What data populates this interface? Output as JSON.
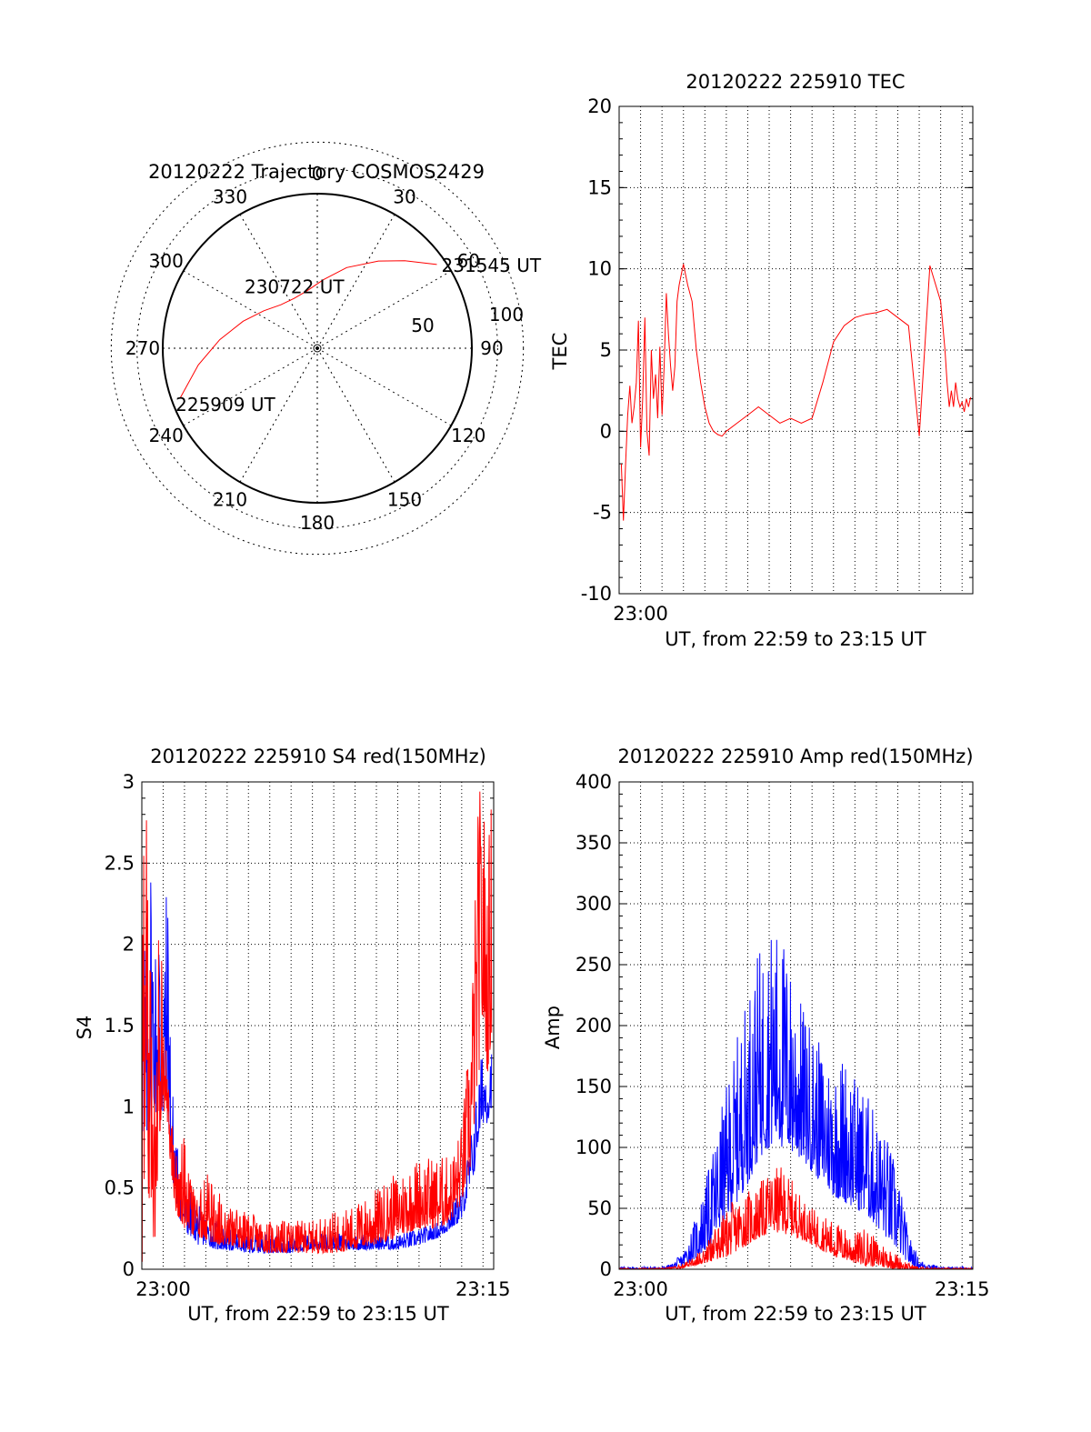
{
  "colors": {
    "red": "#ff0000",
    "blue": "#0000ff",
    "axis": "#000000"
  },
  "chart_data": [
    {
      "id": "trajectory",
      "type": "polar",
      "title": "20120222 Trajectory COSMOS2429",
      "azimuth_labels": [
        "0",
        "30",
        "60",
        "90",
        "120",
        "150",
        "180",
        "210",
        "240",
        "270",
        "300",
        "330"
      ],
      "radius_labels": [
        "50",
        "100"
      ],
      "points": [
        {
          "label": "225909 UT",
          "azimuth_deg": 250,
          "elevation_deg": 5
        },
        {
          "label": "230722 UT",
          "azimuth_deg": 330,
          "elevation_deg": 58
        },
        {
          "label": "231545 UT",
          "azimuth_deg": 55,
          "elevation_deg": 5
        }
      ],
      "series": [
        {
          "color": "red",
          "points": [
            [
              250,
              5
            ],
            [
              262,
              20
            ],
            [
              275,
              33
            ],
            [
              290,
              44
            ],
            [
              305,
              52
            ],
            [
              320,
              57
            ],
            [
              335,
              58
            ],
            [
              350,
              56
            ],
            [
              5,
              50
            ],
            [
              20,
              40
            ],
            [
              35,
              28
            ],
            [
              45,
              18
            ],
            [
              55,
              5
            ]
          ]
        }
      ]
    },
    {
      "id": "tec",
      "type": "line",
      "title": "20120222 225910 TEC",
      "xlabel": "UT, from 22:59 to 23:15 UT",
      "ylabel": "TEC",
      "xlim": [
        -1,
        15.5
      ],
      "ylim": [
        -10,
        20
      ],
      "yticks": [
        "-10",
        "-5",
        "0",
        "5",
        "10",
        "15",
        "20"
      ],
      "xticks": [
        {
          "x": 0,
          "label": "23:00"
        }
      ],
      "grid": true,
      "series": [
        {
          "color": "red",
          "x": [
            -0.9,
            -0.8,
            -0.7,
            -0.6,
            -0.5,
            -0.4,
            -0.3,
            -0.2,
            -0.1,
            0,
            0.1,
            0.2,
            0.3,
            0.4,
            0.5,
            0.6,
            0.7,
            0.8,
            0.9,
            1.0,
            1.1,
            1.2,
            1.3,
            1.4,
            1.5,
            1.6,
            1.7,
            1.8,
            2.0,
            2.2,
            2.4,
            2.6,
            2.8,
            3.0,
            3.2,
            3.4,
            3.6,
            3.8,
            4.0,
            4.5,
            5.0,
            5.5,
            6.0,
            6.5,
            7.0,
            7.5,
            8.0,
            8.5,
            9.0,
            9.5,
            10.0,
            10.5,
            11.0,
            11.5,
            12.0,
            12.5,
            13.0,
            13.5,
            14.0,
            14.2,
            14.3,
            14.4,
            14.5,
            14.6,
            14.7,
            14.8,
            14.9,
            15.0,
            15.1,
            15.2,
            15.3,
            15.4
          ],
          "y": [
            -2,
            -5.5,
            -2,
            1,
            2.8,
            0.5,
            1.5,
            3,
            6.8,
            -1,
            2,
            7,
            0,
            -1.5,
            5,
            2,
            3.5,
            0.8,
            5.2,
            1,
            4,
            8.5,
            6,
            4,
            2.5,
            4,
            8,
            9,
            10.3,
            9,
            8,
            5,
            3,
            1.5,
            0.5,
            0,
            -0.2,
            -0.3,
            0,
            0.5,
            1,
            1.5,
            1,
            0.5,
            0.8,
            0.5,
            0.8,
            3,
            5.5,
            6.5,
            7,
            7.2,
            7.3,
            7.5,
            7,
            6.5,
            -0.3,
            10.2,
            8,
            5,
            3,
            1.5,
            2.5,
            1.5,
            3,
            2,
            1.5,
            1.8,
            1.2,
            2,
            1.5,
            2.1
          ]
        }
      ]
    },
    {
      "id": "s4",
      "type": "line",
      "title": "20120222 225910 S4 red(150MHz)",
      "xlabel": "UT, from 22:59 to 23:15 UT",
      "ylabel": "S4",
      "xlim": [
        -1,
        15.5
      ],
      "ylim": [
        0,
        3
      ],
      "yticks": [
        "0",
        "0.5",
        "1",
        "1.5",
        "2",
        "2.5",
        "3"
      ],
      "xticks": [
        {
          "x": 0,
          "label": "23:00"
        },
        {
          "x": 15,
          "label": "23:15"
        }
      ],
      "grid": true,
      "envelope_note": "noisy series; values are a sampled envelope",
      "series": [
        {
          "color": "blue",
          "x": [
            -1,
            -0.8,
            -0.6,
            -0.4,
            -0.2,
            0,
            0.2,
            0.4,
            0.6,
            0.8,
            1.0,
            1.2,
            1.4,
            1.6,
            2,
            2.5,
            3,
            4,
            5,
            6,
            7,
            8,
            9,
            10,
            11,
            12,
            13,
            14,
            14.4,
            14.6,
            14.8,
            15,
            15.2,
            15.4
          ],
          "lo": [
            0.8,
            0.7,
            0.9,
            1.0,
            0.8,
            0.9,
            1.0,
            0.6,
            0.4,
            0.3,
            0.25,
            0.2,
            0.2,
            0.15,
            0.15,
            0.12,
            0.12,
            0.1,
            0.1,
            0.1,
            0.12,
            0.12,
            0.12,
            0.12,
            0.12,
            0.15,
            0.2,
            0.3,
            0.5,
            0.6,
            0.8,
            0.9,
            0.9,
            1.0
          ],
          "hi": [
            2.5,
            2.2,
            2.8,
            2.0,
            2.6,
            2.0,
            2.5,
            1.2,
            0.9,
            0.6,
            0.5,
            0.5,
            0.45,
            0.4,
            0.35,
            0.3,
            0.25,
            0.22,
            0.22,
            0.22,
            0.22,
            0.22,
            0.22,
            0.22,
            0.22,
            0.25,
            0.3,
            0.5,
            0.8,
            1.0,
            1.2,
            1.4,
            1.3,
            1.4
          ]
        },
        {
          "color": "red",
          "x": [
            -1,
            -0.8,
            -0.6,
            -0.4,
            -0.2,
            0,
            0.2,
            0.4,
            0.6,
            0.8,
            1.0,
            1.2,
            1.4,
            1.6,
            2,
            2.5,
            3,
            4,
            5,
            6,
            7,
            8,
            9,
            10,
            11,
            12,
            13,
            13.5,
            14,
            14.4,
            14.6,
            14.8,
            15,
            15.2,
            15.4
          ],
          "lo": [
            0,
            0.2,
            0.5,
            0.0,
            0.8,
            1.0,
            0.9,
            0.5,
            0.35,
            0.3,
            0.25,
            0.25,
            0.2,
            0.2,
            0.18,
            0.15,
            0.15,
            0.12,
            0.1,
            0.1,
            0.1,
            0.1,
            0.12,
            0.15,
            0.2,
            0.25,
            0.25,
            0.3,
            0.4,
            0.6,
            0.9,
            1.2,
            1.5,
            1.2,
            1.4
          ],
          "hi": [
            3,
            3,
            2.0,
            3,
            3,
            1.5,
            1.3,
            1.0,
            0.8,
            0.7,
            0.9,
            0.6,
            0.5,
            0.45,
            0.6,
            0.5,
            0.4,
            0.35,
            0.3,
            0.3,
            0.3,
            0.35,
            0.4,
            0.5,
            0.6,
            0.7,
            0.7,
            0.7,
            0.9,
            1.5,
            2.2,
            3,
            3,
            2.5,
            3
          ]
        }
      ]
    },
    {
      "id": "amp",
      "type": "line",
      "title": "20120222 225910 Amp red(150MHz)",
      "xlabel": "UT, from 22:59 to 23:15 UT",
      "ylabel": "Amp",
      "xlim": [
        -1,
        15.5
      ],
      "ylim": [
        0,
        400
      ],
      "yticks": [
        "0",
        "50",
        "100",
        "150",
        "200",
        "250",
        "300",
        "350",
        "400"
      ],
      "xticks": [
        {
          "x": 0,
          "label": "23:00"
        },
        {
          "x": 15,
          "label": "23:15"
        }
      ],
      "grid": true,
      "envelope_note": "noisy series; values are a sampled envelope",
      "series": [
        {
          "color": "blue",
          "x": [
            -1,
            0,
            1,
            1.5,
            2,
            2.5,
            3,
            3.5,
            4,
            4.5,
            5,
            5.5,
            6,
            6.5,
            7,
            7.5,
            8,
            8.5,
            9,
            9.5,
            10,
            10.5,
            11,
            11.5,
            12,
            12.5,
            13,
            14,
            15,
            15.5
          ],
          "lo": [
            0,
            0,
            0,
            1,
            3,
            8,
            15,
            25,
            40,
            55,
            70,
            90,
            100,
            100,
            95,
            90,
            80,
            70,
            60,
            55,
            50,
            45,
            35,
            25,
            15,
            5,
            1,
            0,
            0,
            0
          ],
          "hi": [
            2,
            2,
            2,
            5,
            15,
            40,
            70,
            110,
            150,
            190,
            230,
            260,
            280,
            285,
            250,
            220,
            200,
            180,
            170,
            180,
            160,
            150,
            125,
            110,
            80,
            30,
            8,
            2,
            2,
            2
          ]
        },
        {
          "color": "red",
          "x": [
            -1,
            0,
            1,
            1.5,
            2,
            2.5,
            3,
            3.5,
            4,
            4.5,
            5,
            5.5,
            6,
            6.5,
            7,
            7.5,
            8,
            8.5,
            9,
            9.5,
            10,
            10.5,
            11,
            11.5,
            12,
            12.5,
            13,
            14,
            15,
            15.5
          ],
          "lo": [
            0,
            0,
            0,
            0,
            1,
            3,
            5,
            8,
            10,
            15,
            20,
            25,
            30,
            30,
            28,
            25,
            20,
            15,
            10,
            8,
            5,
            3,
            2,
            1,
            0,
            0,
            0,
            0,
            0,
            0
          ],
          "hi": [
            1,
            1,
            1,
            2,
            5,
            10,
            20,
            35,
            50,
            60,
            65,
            70,
            80,
            85,
            75,
            60,
            50,
            45,
            40,
            35,
            30,
            35,
            25,
            20,
            12,
            5,
            2,
            1,
            1,
            1
          ]
        }
      ]
    }
  ]
}
